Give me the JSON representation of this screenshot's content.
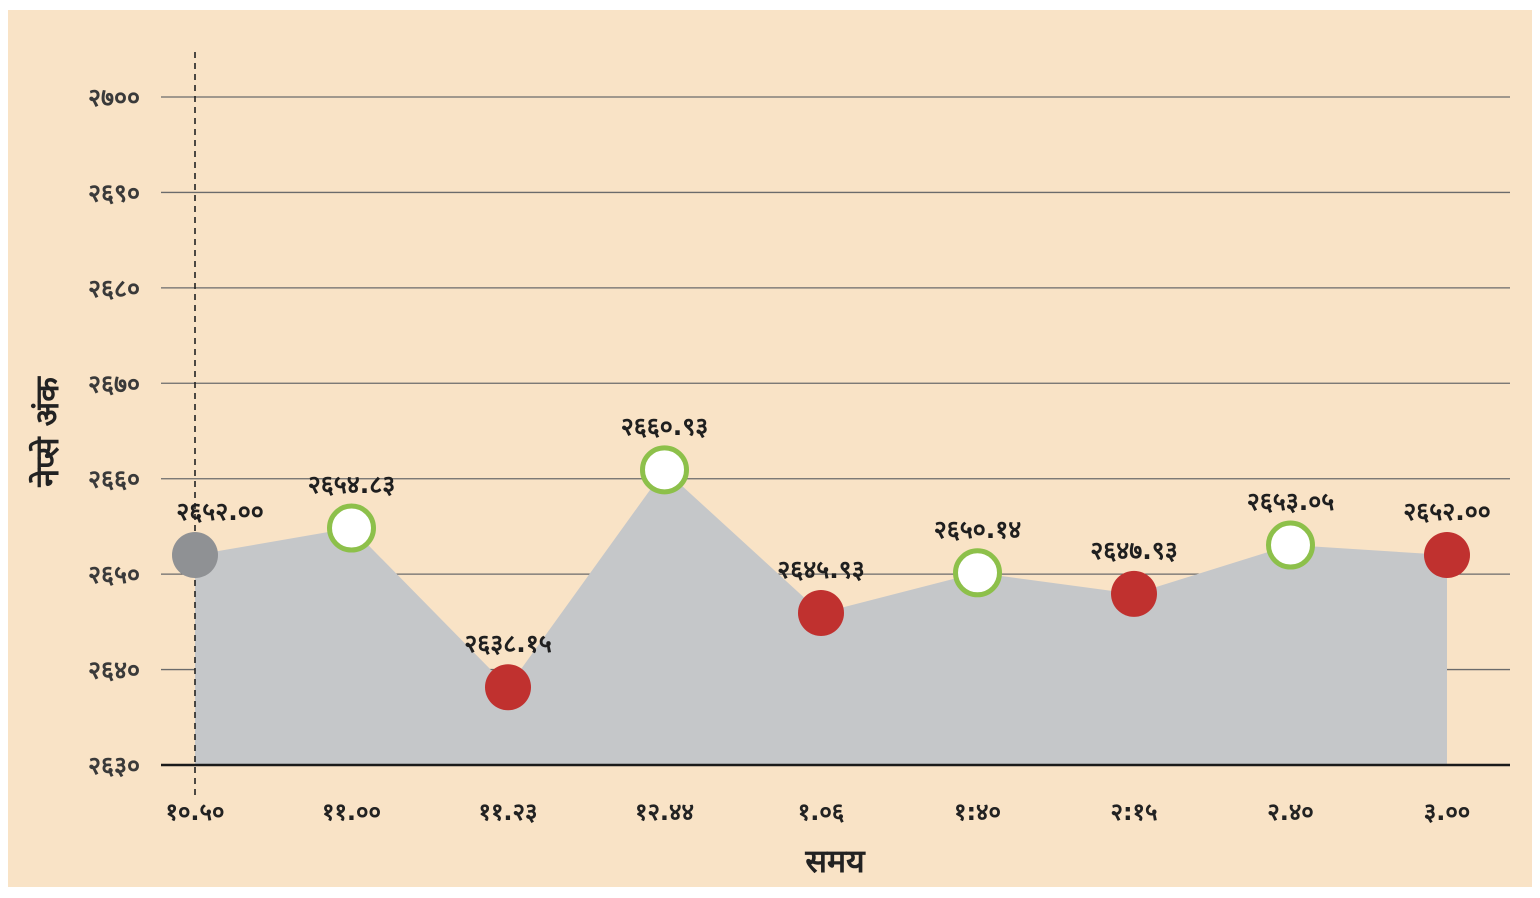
{
  "chart_data": {
    "type": "area",
    "xlabel": "समय",
    "ylabel": "नेप्से अंक",
    "ylim": [
      2630,
      2700
    ],
    "y_ticks": [
      {
        "value": 2700,
        "label": "२७००"
      },
      {
        "value": 2690,
        "label": "२६९०"
      },
      {
        "value": 2680,
        "label": "२६८०"
      },
      {
        "value": 2670,
        "label": "२६७०"
      },
      {
        "value": 2660,
        "label": "२६६०"
      },
      {
        "value": 2650,
        "label": "२६५०"
      },
      {
        "value": 2640,
        "label": "२६४०"
      },
      {
        "value": 2630,
        "label": "२६३०"
      }
    ],
    "categories": [
      "१०.५०",
      "११.००",
      "११.२३",
      "१२.४४",
      "१.०६",
      "१:४०",
      "२:१५",
      "२.४०",
      "३.००"
    ],
    "values": [
      2652.0,
      2654.83,
      2638.15,
      2660.93,
      2645.93,
      2650.14,
      2647.93,
      2653.05,
      2652.0
    ],
    "value_labels": [
      "२६५२.००",
      "२६५४.८३",
      "२६३८.१५",
      "२६६०.९३",
      "२६४५.९३",
      "२६५०.१४",
      "२६४७.९३",
      "२६५३.०५",
      "२६५२.००"
    ],
    "marker_status": [
      "neutral",
      "up",
      "down",
      "up",
      "down",
      "up",
      "down",
      "up",
      "down"
    ],
    "grid": true,
    "colors": {
      "background": "#f9e3c6",
      "area_fill": "#c5c7c9",
      "gridline": "#6b6b6b",
      "axis": "#1a1a1a",
      "up_ring": "#8dc04a",
      "up_fill": "#ffffff",
      "down_fill": "#c0312f",
      "neutral_fill": "#8f9194"
    }
  }
}
